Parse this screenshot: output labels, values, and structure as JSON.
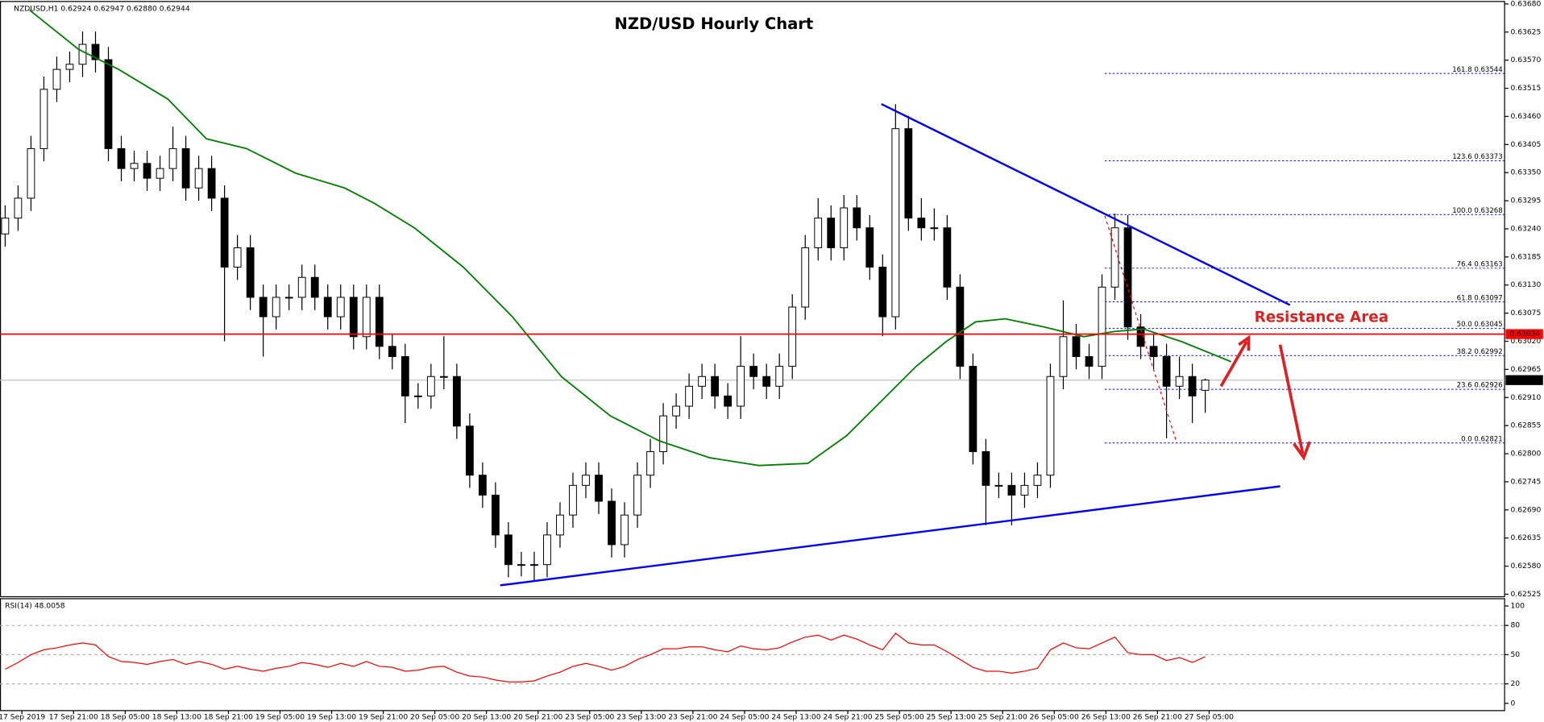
{
  "chart_data": {
    "type": "candlestick",
    "title": "NZD/USD Hourly Chart",
    "header": "NZDUSD,H1  0.62924 0.62947 0.62880 0.62944",
    "annotation": "Resistance Area",
    "xlim": [
      -0.4,
      116.2
    ],
    "xticks": [
      {
        "value": 1.3,
        "label": "17 Sep 2019"
      },
      {
        "value": 5.3,
        "label": "17 Sep 21:00"
      },
      {
        "value": 9.3,
        "label": "18 Sep 05:00"
      },
      {
        "value": 13.3,
        "label": "18 Sep 13:00"
      },
      {
        "value": 17.3,
        "label": "18 Sep 21:00"
      },
      {
        "value": 21.3,
        "label": "19 Sep 05:00"
      },
      {
        "value": 25.3,
        "label": "19 Sep 13:00"
      },
      {
        "value": 29.3,
        "label": "19 Sep 21:00"
      },
      {
        "value": 33.3,
        "label": "20 Sep 05:00"
      },
      {
        "value": 37.3,
        "label": "20 Sep 13:00"
      },
      {
        "value": 41.3,
        "label": "20 Sep 21:00"
      },
      {
        "value": 45.3,
        "label": "23 Sep 05:00"
      },
      {
        "value": 49.3,
        "label": "23 Sep 13:00"
      },
      {
        "value": 53.3,
        "label": "23 Sep 21:00"
      },
      {
        "value": 57.3,
        "label": "24 Sep 05:00"
      },
      {
        "value": 61.3,
        "label": "24 Sep 13:00"
      },
      {
        "value": 65.3,
        "label": "24 Sep 21:00"
      },
      {
        "value": 69.3,
        "label": "25 Sep 05:00"
      },
      {
        "value": 73.3,
        "label": "25 Sep 13:00"
      },
      {
        "value": 77.3,
        "label": "25 Sep 21:00"
      },
      {
        "value": 81.3,
        "label": "26 Sep 05:00"
      },
      {
        "value": 85.3,
        "label": "26 Sep 13:00"
      },
      {
        "value": 89.3,
        "label": "26 Sep 21:00"
      },
      {
        "value": 93.3,
        "label": "27 Sep 05:00"
      }
    ],
    "ylim": [
      0.62525,
      0.6368
    ],
    "yticks": [
      {
        "value": 0.62525,
        "label": "0.62525"
      },
      {
        "value": 0.6258,
        "label": "0.62580"
      },
      {
        "value": 0.62635,
        "label": "0.62635"
      },
      {
        "value": 0.6269,
        "label": "0.62690"
      },
      {
        "value": 0.62745,
        "label": "0.62745"
      },
      {
        "value": 0.628,
        "label": "0.62800"
      },
      {
        "value": 0.62855,
        "label": "0.62855"
      },
      {
        "value": 0.6291,
        "label": "0.62910"
      },
      {
        "value": 0.62965,
        "label": "0.62965"
      },
      {
        "value": 0.6302,
        "label": "0.63020"
      },
      {
        "value": 0.63075,
        "label": "0.63075"
      },
      {
        "value": 0.6313,
        "label": "0.63130"
      },
      {
        "value": 0.63185,
        "label": "0.63185"
      },
      {
        "value": 0.6324,
        "label": "0.63240"
      },
      {
        "value": 0.63295,
        "label": "0.63295"
      },
      {
        "value": 0.6335,
        "label": "0.63350"
      },
      {
        "value": 0.63405,
        "label": "0.63405"
      },
      {
        "value": 0.6346,
        "label": "0.63460"
      },
      {
        "value": 0.63515,
        "label": "0.63515"
      },
      {
        "value": 0.6357,
        "label": "0.63570"
      },
      {
        "value": 0.63625,
        "label": "0.63625"
      },
      {
        "value": 0.6368,
        "label": "0.63680"
      }
    ],
    "up_color": "#ffffff",
    "down_color": "#000000",
    "candles": {
      "open": [
        0.6323,
        0.63261,
        0.633,
        0.63397,
        0.63513,
        0.63552,
        0.63562,
        0.63601,
        0.63571,
        0.63397,
        0.63358,
        0.63368,
        0.63339,
        0.63358,
        0.63397,
        0.6332,
        0.63358,
        0.633,
        0.63165,
        0.63203,
        0.63106,
        0.63068,
        0.63106,
        0.63106,
        0.63145,
        0.63106,
        0.63068,
        0.63106,
        0.63029,
        0.63106,
        0.6301,
        0.6299,
        0.62913,
        0.62913,
        0.62951,
        0.62951,
        0.62854,
        0.62758,
        0.62719,
        0.62641,
        0.62583,
        0.62583,
        0.62583,
        0.62641,
        0.6268,
        0.62738,
        0.62758,
        0.62707,
        0.62622,
        0.6268,
        0.62758,
        0.62804,
        0.62874,
        0.62893,
        0.62932,
        0.62951,
        0.62913,
        0.62893,
        0.62971,
        0.62951,
        0.62932,
        0.62971,
        0.63087,
        0.63203,
        0.63261,
        0.63203,
        0.63281,
        0.63242,
        0.63165,
        0.63068,
        0.63436,
        0.63261,
        0.63242,
        0.63242,
        0.63126,
        0.62971,
        0.62804,
        0.62738,
        0.62738,
        0.62719,
        0.62738,
        0.62758,
        0.62951,
        0.63029,
        0.6299,
        0.62971,
        0.63126,
        0.63242,
        0.63048,
        0.6301,
        0.6299,
        0.62932,
        0.62951,
        0.62924
      ],
      "high": [
        0.63286,
        0.63325,
        0.63422,
        0.63538,
        0.63577,
        0.63587,
        0.63626,
        0.63626,
        0.63596,
        0.63422,
        0.63393,
        0.63393,
        0.63383,
        0.6344,
        0.63422,
        0.63383,
        0.63383,
        0.63325,
        0.63228,
        0.63228,
        0.63131,
        0.63131,
        0.63131,
        0.6317,
        0.6317,
        0.63131,
        0.63131,
        0.63131,
        0.63131,
        0.63131,
        0.63035,
        0.63015,
        0.62938,
        0.62976,
        0.6303,
        0.62976,
        0.62879,
        0.62783,
        0.62744,
        0.62666,
        0.62608,
        0.62608,
        0.62666,
        0.62705,
        0.62763,
        0.62783,
        0.62783,
        0.62732,
        0.62705,
        0.62783,
        0.62829,
        0.62899,
        0.62918,
        0.62957,
        0.62976,
        0.62976,
        0.62938,
        0.6303,
        0.62996,
        0.62976,
        0.62996,
        0.63112,
        0.63228,
        0.633,
        0.63286,
        0.63306,
        0.63306,
        0.63267,
        0.6319,
        0.63484,
        0.63461,
        0.633,
        0.6328,
        0.63267,
        0.63151,
        0.62996,
        0.62829,
        0.62763,
        0.62763,
        0.62763,
        0.62783,
        0.62976,
        0.631,
        0.63054,
        0.63015,
        0.63151,
        0.6327,
        0.63267,
        0.63073,
        0.63035,
        0.63015,
        0.6299,
        0.62976,
        0.62947
      ],
      "low": [
        0.63205,
        0.63236,
        0.63275,
        0.63372,
        0.63488,
        0.63527,
        0.63537,
        0.63546,
        0.63372,
        0.63333,
        0.63333,
        0.63314,
        0.63314,
        0.63333,
        0.63295,
        0.63295,
        0.63275,
        0.6302,
        0.6314,
        0.63081,
        0.6299,
        0.63043,
        0.63081,
        0.63081,
        0.63081,
        0.63043,
        0.63043,
        0.63004,
        0.63004,
        0.62985,
        0.62965,
        0.6286,
        0.62888,
        0.62888,
        0.62926,
        0.62829,
        0.62733,
        0.62694,
        0.62616,
        0.62558,
        0.6256,
        0.6255,
        0.62558,
        0.62616,
        0.62655,
        0.62713,
        0.62682,
        0.62597,
        0.62597,
        0.62655,
        0.62733,
        0.62779,
        0.62849,
        0.62868,
        0.62907,
        0.62888,
        0.62868,
        0.62868,
        0.62926,
        0.62907,
        0.62907,
        0.62946,
        0.63062,
        0.63178,
        0.63178,
        0.63178,
        0.63217,
        0.6314,
        0.6303,
        0.63043,
        0.63236,
        0.63217,
        0.63217,
        0.63101,
        0.62946,
        0.62779,
        0.6266,
        0.62713,
        0.6266,
        0.62694,
        0.62713,
        0.62733,
        0.62926,
        0.62965,
        0.62946,
        0.62946,
        0.63101,
        0.63023,
        0.62985,
        0.62965,
        0.6283,
        0.62907,
        0.6286,
        0.6288
      ],
      "close": [
        0.63261,
        0.633,
        0.63397,
        0.63513,
        0.63552,
        0.63562,
        0.63601,
        0.63571,
        0.63397,
        0.63358,
        0.63368,
        0.63339,
        0.63358,
        0.63397,
        0.6332,
        0.63358,
        0.633,
        0.63165,
        0.63203,
        0.63106,
        0.63068,
        0.63106,
        0.63106,
        0.63145,
        0.63106,
        0.63068,
        0.63106,
        0.63029,
        0.63106,
        0.6301,
        0.6299,
        0.62913,
        0.62913,
        0.62951,
        0.62951,
        0.62854,
        0.62758,
        0.62719,
        0.62641,
        0.62583,
        0.62583,
        0.62583,
        0.62641,
        0.6268,
        0.62738,
        0.62758,
        0.62707,
        0.62622,
        0.6268,
        0.62758,
        0.62804,
        0.62874,
        0.62893,
        0.62932,
        0.62951,
        0.62913,
        0.62893,
        0.62971,
        0.62951,
        0.62932,
        0.62971,
        0.63087,
        0.63203,
        0.63261,
        0.63203,
        0.63281,
        0.63242,
        0.63165,
        0.63068,
        0.63436,
        0.63261,
        0.63242,
        0.63242,
        0.63126,
        0.62971,
        0.62804,
        0.62738,
        0.62738,
        0.62719,
        0.62738,
        0.62758,
        0.62951,
        0.63029,
        0.6299,
        0.62971,
        0.63126,
        0.63242,
        0.63048,
        0.6301,
        0.6299,
        0.62932,
        0.62951,
        0.62913,
        0.62944
      ]
    },
    "ma": {
      "color": "#008000",
      "x": [
        1.9,
        5.7,
        8.8,
        12.6,
        15.6,
        18.7,
        22.5,
        26.3,
        28.6,
        31.7,
        35.5,
        39.3,
        43.1,
        46.9,
        50.7,
        54.6,
        58.4,
        62.2,
        65.2,
        68.3,
        70.6,
        72.9,
        75.2,
        77.5,
        80.5,
        83.6,
        85.9,
        88.2,
        91.2,
        95.0
      ],
      "values": [
        0.63668,
        0.63591,
        0.63552,
        0.63494,
        0.63416,
        0.63397,
        0.63349,
        0.6332,
        0.6329,
        0.63242,
        0.63165,
        0.63068,
        0.62951,
        0.62874,
        0.62825,
        0.62792,
        0.62777,
        0.62781,
        0.62835,
        0.62913,
        0.62971,
        0.63019,
        0.63058,
        0.63064,
        0.63048,
        0.63029,
        0.63039,
        0.63044,
        0.63019,
        0.6298
      ]
    },
    "fib_color": "#0000ff",
    "fib_levels": [
      {
        "label": "161.8 0.63544",
        "value": 0.63544
      },
      {
        "label": "123.6 0.63373",
        "value": 0.63373
      },
      {
        "label": "100.0 0.63268",
        "value": 0.63268
      },
      {
        "label": "76.4 0.63163",
        "value": 0.63163
      },
      {
        "label": "61.8 0.63097",
        "value": 0.63097
      },
      {
        "label": "50.0 0.63045",
        "value": 0.63045
      },
      {
        "label": "38.2 0.62992",
        "value": 0.62992
      },
      {
        "label": "23.6 0.62926",
        "value": 0.62926
      },
      {
        "label": "0.0 0.62821",
        "value": 0.62821
      }
    ],
    "resistance": {
      "value": 0.63034,
      "label": "0.63034",
      "color": "#ff0000"
    },
    "last_price": {
      "value": 0.62944,
      "label": "0.62944"
    },
    "rsi": {
      "label": "RSI(14) 48.0058",
      "color": "#ff0000",
      "ylim": [
        -8,
        108
      ],
      "yticks": [
        100,
        80,
        50,
        20,
        0
      ],
      "levels": [
        80,
        50,
        20
      ],
      "values": [
        35,
        42,
        50,
        55,
        57,
        60,
        62,
        60,
        48,
        43,
        42,
        40,
        43,
        45,
        40,
        43,
        40,
        35,
        38,
        35,
        33,
        36,
        38,
        42,
        40,
        37,
        41,
        38,
        43,
        38,
        37,
        33,
        34,
        37,
        38,
        32,
        28,
        27,
        24,
        22,
        22,
        23,
        28,
        32,
        38,
        41,
        38,
        34,
        38,
        45,
        50,
        56,
        56,
        58,
        58,
        55,
        53,
        59,
        56,
        55,
        57,
        63,
        68,
        70,
        65,
        70,
        66,
        60,
        55,
        72,
        62,
        60,
        60,
        53,
        45,
        37,
        33,
        33,
        31,
        33,
        36,
        55,
        62,
        57,
        56,
        62,
        68,
        52,
        50,
        50,
        44,
        47,
        42,
        48
      ]
    }
  }
}
